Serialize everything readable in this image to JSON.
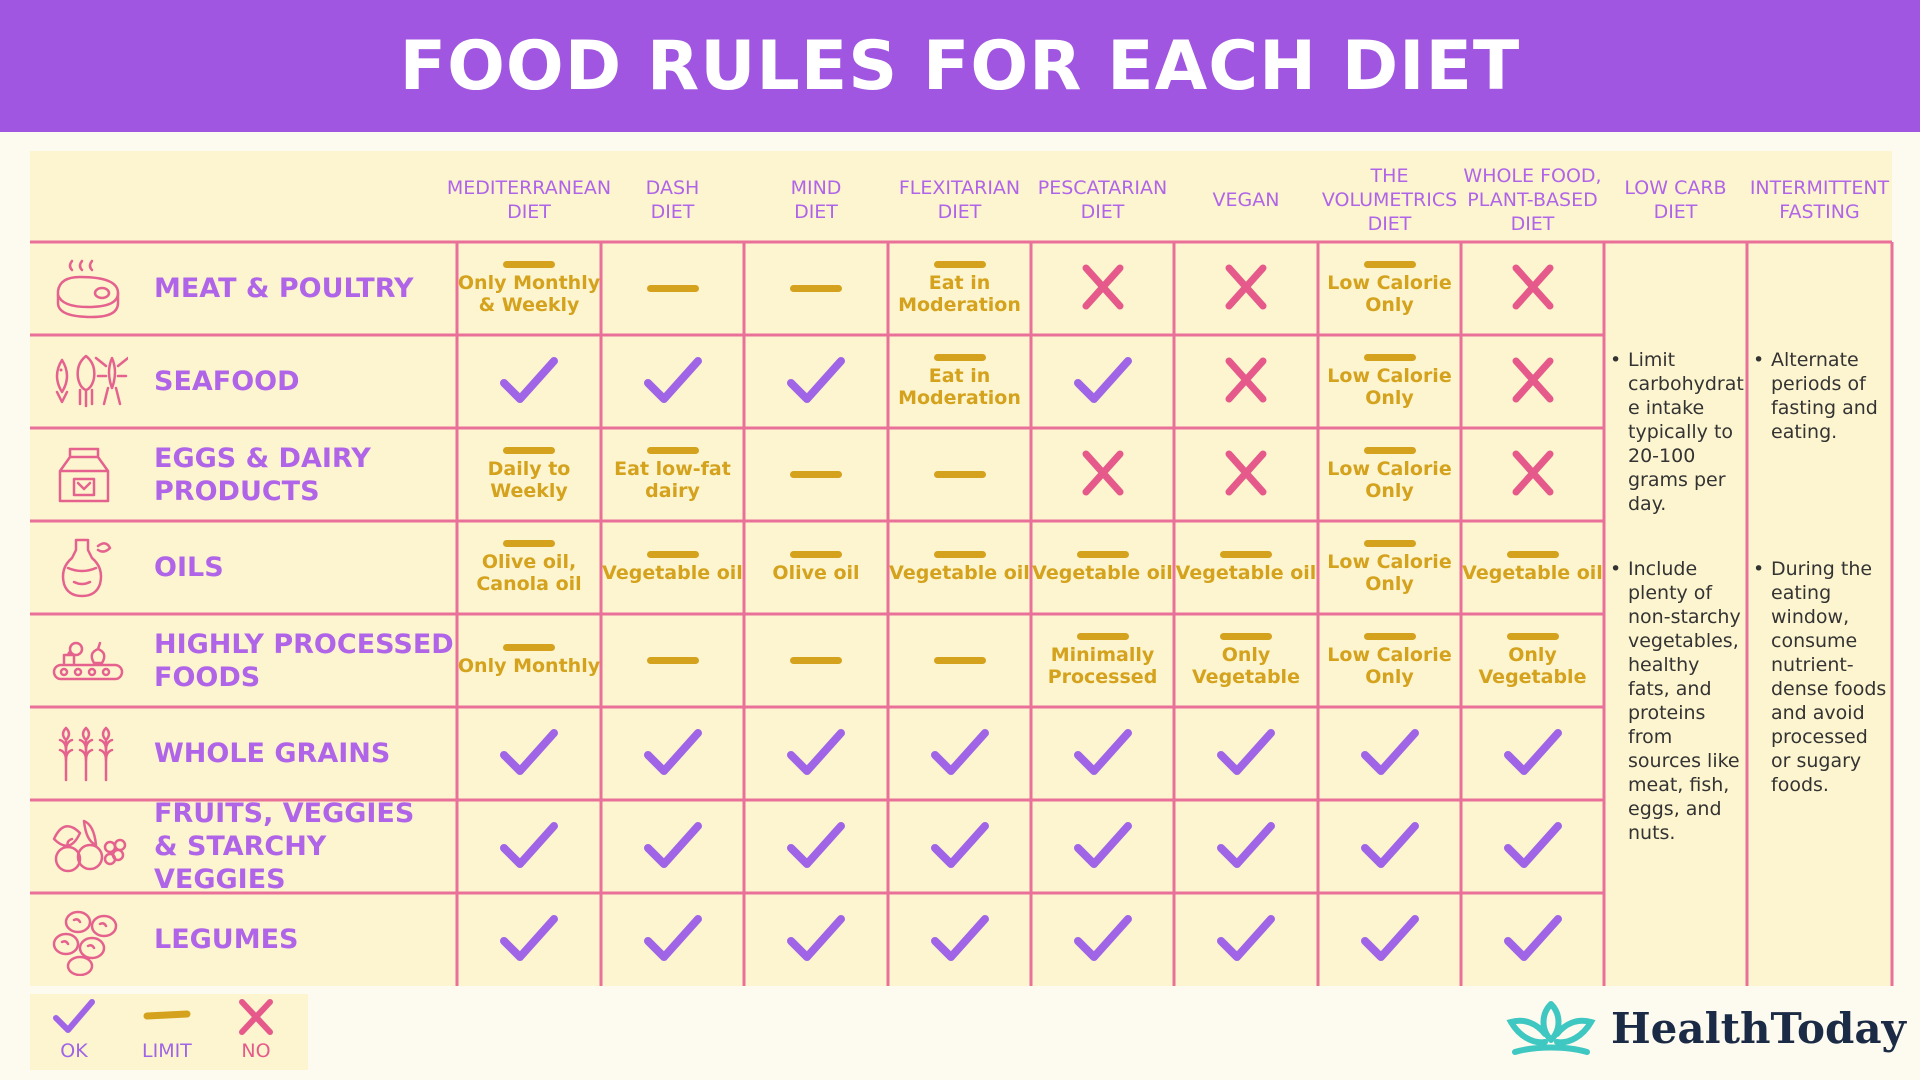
{
  "title": "FOOD RULES FOR EACH DIET",
  "diets": [
    "MEDITERRANEAN\nDIET",
    "DASH\nDIET",
    "MIND\nDIET",
    "FLEXITARIAN\nDIET",
    "PESCATARIAN\nDIET",
    "VEGAN",
    "THE\nVOLUMETRICS\nDIET",
    "WHOLE FOOD,\nPLANT-BASED\nDIET",
    "LOW CARB\nDIET",
    "INTERMITTENT\nFASTING"
  ],
  "rows": [
    {
      "label": "MEAT & POULTRY",
      "icon": "meat-icon",
      "cells": [
        {
          "mark": "limit",
          "text": "Only Monthly\n& Weekly"
        },
        {
          "mark": "limit",
          "text": ""
        },
        {
          "mark": "limit",
          "text": ""
        },
        {
          "mark": "limit",
          "text": "Eat in\nModeration"
        },
        {
          "mark": "no",
          "text": ""
        },
        {
          "mark": "no",
          "text": ""
        },
        {
          "mark": "limit",
          "text": "Low Calorie\nOnly"
        },
        {
          "mark": "no",
          "text": ""
        }
      ]
    },
    {
      "label": "SEAFOOD",
      "icon": "seafood-icon",
      "cells": [
        {
          "mark": "ok",
          "text": ""
        },
        {
          "mark": "ok",
          "text": ""
        },
        {
          "mark": "ok",
          "text": ""
        },
        {
          "mark": "limit",
          "text": "Eat in\nModeration"
        },
        {
          "mark": "ok",
          "text": ""
        },
        {
          "mark": "no",
          "text": ""
        },
        {
          "mark": "limit",
          "text": "Low Calorie\nOnly"
        },
        {
          "mark": "no",
          "text": ""
        }
      ]
    },
    {
      "label": "EGGS & DAIRY\nPRODUCTS",
      "icon": "milk-carton-icon",
      "cells": [
        {
          "mark": "limit",
          "text": "Daily to\nWeekly"
        },
        {
          "mark": "limit",
          "text": "Eat low-fat\ndairy"
        },
        {
          "mark": "limit",
          "text": ""
        },
        {
          "mark": "limit",
          "text": ""
        },
        {
          "mark": "no",
          "text": ""
        },
        {
          "mark": "no",
          "text": ""
        },
        {
          "mark": "limit",
          "text": "Low Calorie\nOnly"
        },
        {
          "mark": "no",
          "text": ""
        }
      ]
    },
    {
      "label": "OILS",
      "icon": "oil-bottle-icon",
      "cells": [
        {
          "mark": "limit",
          "text": "Olive oil,\nCanola oil"
        },
        {
          "mark": "limit",
          "text": "Vegetable oil"
        },
        {
          "mark": "limit",
          "text": "Olive oil"
        },
        {
          "mark": "limit",
          "text": "Vegetable oil"
        },
        {
          "mark": "limit",
          "text": "Vegetable oil"
        },
        {
          "mark": "limit",
          "text": "Vegetable oil"
        },
        {
          "mark": "limit",
          "text": "Low Calorie\nOnly"
        },
        {
          "mark": "limit",
          "text": "Vegetable oil"
        }
      ]
    },
    {
      "label": "HIGHLY PROCESSED\nFOODS",
      "icon": "conveyor-icon",
      "cells": [
        {
          "mark": "limit",
          "text": "Only Monthly"
        },
        {
          "mark": "limit",
          "text": ""
        },
        {
          "mark": "limit",
          "text": ""
        },
        {
          "mark": "limit",
          "text": ""
        },
        {
          "mark": "limit",
          "text": "Minimally\nProcessed"
        },
        {
          "mark": "limit",
          "text": "Only\nVegetable"
        },
        {
          "mark": "limit",
          "text": "Low Calorie\nOnly"
        },
        {
          "mark": "limit",
          "text": "Only\nVegetable"
        }
      ]
    },
    {
      "label": "WHOLE GRAINS",
      "icon": "wheat-icon",
      "cells": [
        {
          "mark": "ok",
          "text": ""
        },
        {
          "mark": "ok",
          "text": ""
        },
        {
          "mark": "ok",
          "text": ""
        },
        {
          "mark": "ok",
          "text": ""
        },
        {
          "mark": "ok",
          "text": ""
        },
        {
          "mark": "ok",
          "text": ""
        },
        {
          "mark": "ok",
          "text": ""
        },
        {
          "mark": "ok",
          "text": ""
        }
      ]
    },
    {
      "label": "FRUITS, VEGGIES\n& STARCHY VEGGIES",
      "icon": "fruits-veggies-icon",
      "cells": [
        {
          "mark": "ok",
          "text": ""
        },
        {
          "mark": "ok",
          "text": ""
        },
        {
          "mark": "ok",
          "text": ""
        },
        {
          "mark": "ok",
          "text": ""
        },
        {
          "mark": "ok",
          "text": ""
        },
        {
          "mark": "ok",
          "text": ""
        },
        {
          "mark": "ok",
          "text": ""
        },
        {
          "mark": "ok",
          "text": ""
        }
      ]
    },
    {
      "label": "LEGUMES",
      "icon": "legumes-icon",
      "cells": [
        {
          "mark": "ok",
          "text": ""
        },
        {
          "mark": "ok",
          "text": ""
        },
        {
          "mark": "ok",
          "text": ""
        },
        {
          "mark": "ok",
          "text": ""
        },
        {
          "mark": "ok",
          "text": ""
        },
        {
          "mark": "ok",
          "text": ""
        },
        {
          "mark": "ok",
          "text": ""
        },
        {
          "mark": "ok",
          "text": ""
        }
      ]
    }
  ],
  "low_carb_notes": [
    "Limit carbohydrat e intake typically to 20-100 grams per day.",
    "Include plenty of non-starchy vegetables, healthy fats, and proteins from sources like meat, fish, eggs, and nuts."
  ],
  "fasting_notes": [
    "Alternate periods of fasting and eating.",
    "During the eating window, consume nutrient-dense foods and avoid processed or sugary foods."
  ],
  "legend": {
    "ok": "OK",
    "limit": "LIMIT",
    "no": "NO"
  },
  "brand": "HealthToday",
  "colors": {
    "header": "#a056e0",
    "ok": "#a065e6",
    "limit": "#d4a21d",
    "no": "#e55a8a",
    "grid": "#e97098",
    "band": "#fdf5cf",
    "logo_icon": "#3fc7c1"
  }
}
